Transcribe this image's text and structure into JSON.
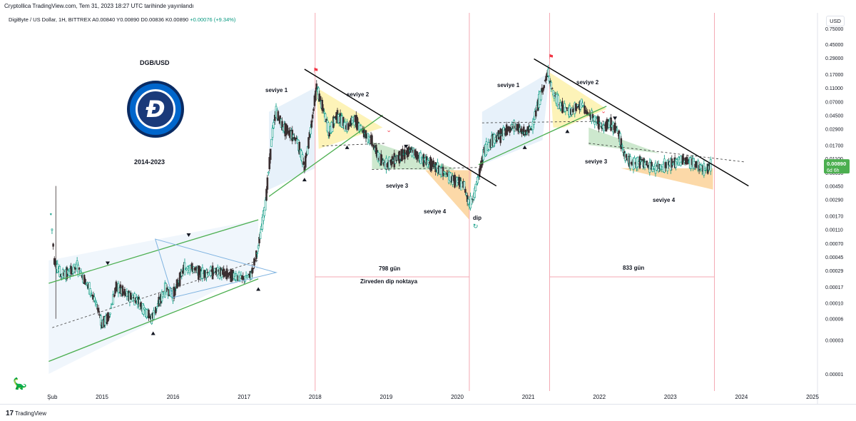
{
  "header": {
    "publisher": "Cryptollica TradingView.com, Tem 31, 2023 18:27 UTC tarihinde yayınlandı",
    "symbol": "DigiByte / US Dollar, 1H, BITTREX",
    "ohlc": "A0.00840 Y0.00890 D0.00836 K0.00890",
    "change": "+0.00076 (+9.34%)"
  },
  "currency_button": "USD",
  "footer": {
    "brand": "TradingView",
    "logo": "17"
  },
  "colors": {
    "up": "#089981",
    "down": "#f23645",
    "candle_dark": "#3a2f31",
    "green_line": "#4caf50",
    "blue_line": "#7fb3e0",
    "vline": "#f4a9b3",
    "fill_blue": "#e3eef9",
    "fill_yellow": "#fdf3b8",
    "fill_green": "#c8e6c9",
    "fill_orange": "#fcd9a8",
    "price_badge": "#4caf50"
  },
  "chart_data": {
    "type": "candlestick",
    "title": "DGB/USD",
    "subtitle": "2014-2023",
    "y_scale": "log",
    "ylim": [
      1e-05,
      0.75
    ],
    "y_ticks": [
      0.75,
      0.45,
      0.29,
      0.17,
      0.11,
      0.07,
      0.045,
      0.029,
      0.017,
      0.011,
      0.0069,
      0.0045,
      0.0029,
      0.0017,
      0.0011,
      0.0007,
      0.00045,
      0.00029,
      0.00017,
      0.0001,
      6e-05,
      3e-05,
      1e-05
    ],
    "y_tick_labels": [
      "0.75000",
      "0.45000",
      "0.29000",
      "0.17000",
      "0.11000",
      "0.07000",
      "0.04500",
      "0.02900",
      "0.01700",
      "0.01100",
      "0.00690",
      "0.00450",
      "0.00290",
      "0.00170",
      "0.00110",
      "0.00070",
      "0.00045",
      "0.00029",
      "0.00017",
      "0.00010",
      "0.00006",
      "0.00003",
      "0.00001"
    ],
    "x_range": [
      2014.2,
      2025.3
    ],
    "x_ticks": [
      2014.3,
      2015,
      2016,
      2017,
      2018,
      2019,
      2020,
      2021,
      2022,
      2023,
      2024,
      2025
    ],
    "x_tick_labels": [
      "Şub",
      "2015",
      "2016",
      "2017",
      "2018",
      "2019",
      "2020",
      "2021",
      "2022",
      "2023",
      "2024",
      "2025"
    ],
    "last_price": {
      "value": 0.0089,
      "label": "0.00890",
      "countdown": "6d 6h"
    },
    "price_path": [
      [
        2014.28,
        0.0018
      ],
      [
        2014.33,
        0.0004
      ],
      [
        2014.42,
        0.00025
      ],
      [
        2014.55,
        0.00027
      ],
      [
        2014.65,
        0.00033
      ],
      [
        2014.75,
        0.00022
      ],
      [
        2014.85,
        0.00014
      ],
      [
        2014.95,
        8e-05
      ],
      [
        2015.0,
        5e-05
      ],
      [
        2015.1,
        6.5e-05
      ],
      [
        2015.2,
        0.00017
      ],
      [
        2015.35,
        0.00013
      ],
      [
        2015.5,
        0.00011
      ],
      [
        2015.6,
        8e-05
      ],
      [
        2015.7,
        6e-05
      ],
      [
        2015.8,
        0.0001
      ],
      [
        2015.9,
        0.00016
      ],
      [
        2016.0,
        0.00013
      ],
      [
        2016.15,
        0.0003
      ],
      [
        2016.25,
        0.00032
      ],
      [
        2016.4,
        0.00026
      ],
      [
        2016.6,
        0.00028
      ],
      [
        2016.8,
        0.00025
      ],
      [
        2017.0,
        0.00022
      ],
      [
        2017.1,
        0.00025
      ],
      [
        2017.2,
        0.0006
      ],
      [
        2017.3,
        0.0025
      ],
      [
        2017.4,
        0.025
      ],
      [
        2017.45,
        0.05
      ],
      [
        2017.55,
        0.03
      ],
      [
        2017.65,
        0.025
      ],
      [
        2017.75,
        0.02
      ],
      [
        2017.85,
        0.008
      ],
      [
        2017.95,
        0.035
      ],
      [
        2018.02,
        0.11
      ],
      [
        2018.1,
        0.06
      ],
      [
        2018.2,
        0.025
      ],
      [
        2018.3,
        0.045
      ],
      [
        2018.45,
        0.03
      ],
      [
        2018.55,
        0.04
      ],
      [
        2018.7,
        0.025
      ],
      [
        2018.8,
        0.019
      ],
      [
        2018.9,
        0.011
      ],
      [
        2019.0,
        0.009
      ],
      [
        2019.2,
        0.012
      ],
      [
        2019.35,
        0.014
      ],
      [
        2019.5,
        0.011
      ],
      [
        2019.65,
        0.009
      ],
      [
        2019.8,
        0.007
      ],
      [
        2019.95,
        0.0055
      ],
      [
        2020.1,
        0.0045
      ],
      [
        2020.17,
        0.0024
      ],
      [
        2020.22,
        0.003
      ],
      [
        2020.3,
        0.006
      ],
      [
        2020.38,
        0.014
      ],
      [
        2020.5,
        0.02
      ],
      [
        2020.65,
        0.025
      ],
      [
        2020.8,
        0.032
      ],
      [
        2020.95,
        0.025
      ],
      [
        2021.05,
        0.03
      ],
      [
        2021.15,
        0.07
      ],
      [
        2021.28,
        0.18
      ],
      [
        2021.35,
        0.09
      ],
      [
        2021.45,
        0.06
      ],
      [
        2021.6,
        0.05
      ],
      [
        2021.75,
        0.065
      ],
      [
        2021.85,
        0.045
      ],
      [
        2021.95,
        0.04
      ],
      [
        2022.05,
        0.03
      ],
      [
        2022.15,
        0.035
      ],
      [
        2022.25,
        0.028
      ],
      [
        2022.35,
        0.013
      ],
      [
        2022.45,
        0.009
      ],
      [
        2022.6,
        0.01
      ],
      [
        2022.75,
        0.008
      ],
      [
        2022.9,
        0.0085
      ],
      [
        2023.05,
        0.0095
      ],
      [
        2023.2,
        0.0105
      ],
      [
        2023.35,
        0.009
      ],
      [
        2023.5,
        0.0075
      ],
      [
        2023.58,
        0.0089
      ]
    ],
    "annotations": {
      "seviye_1": "seviye 1",
      "seviye_2": "seviye 2",
      "seviye_3": "seviye 3",
      "seviye_4": "seviye 4",
      "dip": "dip",
      "cycle1_days": "798 gün",
      "cycle1_note": "Zirveden dip noktaya",
      "cycle2_days": "833 gün"
    }
  }
}
